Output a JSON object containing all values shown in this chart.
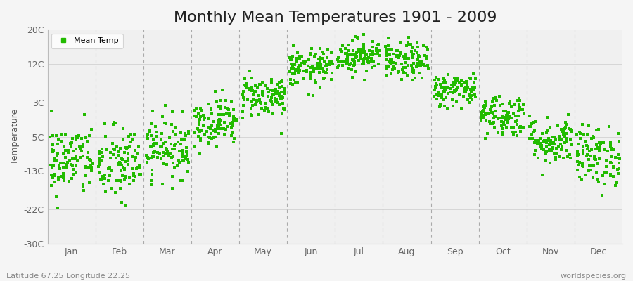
{
  "title": "Monthly Mean Temperatures 1901 - 2009",
  "ylabel": "Temperature",
  "subtitle_left": "Latitude 67.25 Longitude 22.25",
  "subtitle_right": "worldspecies.org",
  "legend_label": "Mean Temp",
  "dot_color": "#22bb00",
  "background_color": "#f5f5f5",
  "plot_bg_color": "#f0f0f0",
  "ylim": [
    -30,
    20
  ],
  "yticks": [
    -30,
    -22,
    -13,
    -5,
    3,
    12,
    20
  ],
  "ytick_labels": [
    "-30C",
    "-22C",
    "-13C",
    "-5C",
    "3C",
    "12C",
    "20C"
  ],
  "months": [
    "Jan",
    "Feb",
    "Mar",
    "Apr",
    "May",
    "Jun",
    "Jul",
    "Aug",
    "Sep",
    "Oct",
    "Nov",
    "Dec"
  ],
  "month_means": [
    -10.5,
    -11.5,
    -7.5,
    -1.5,
    4.5,
    11.0,
    14.0,
    12.5,
    6.0,
    0.0,
    -6.0,
    -9.5
  ],
  "month_stds": [
    4.2,
    4.5,
    3.5,
    2.8,
    2.5,
    2.2,
    2.0,
    2.2,
    2.0,
    2.5,
    2.8,
    3.5
  ],
  "n_years": 109,
  "seed": 42,
  "dot_size": 5,
  "dpi": 100,
  "fig_width": 9.0,
  "fig_height": 4.0,
  "title_fontsize": 16,
  "axis_label_fontsize": 9,
  "tick_fontsize": 9,
  "legend_fontsize": 8,
  "subtitle_fontsize": 8
}
